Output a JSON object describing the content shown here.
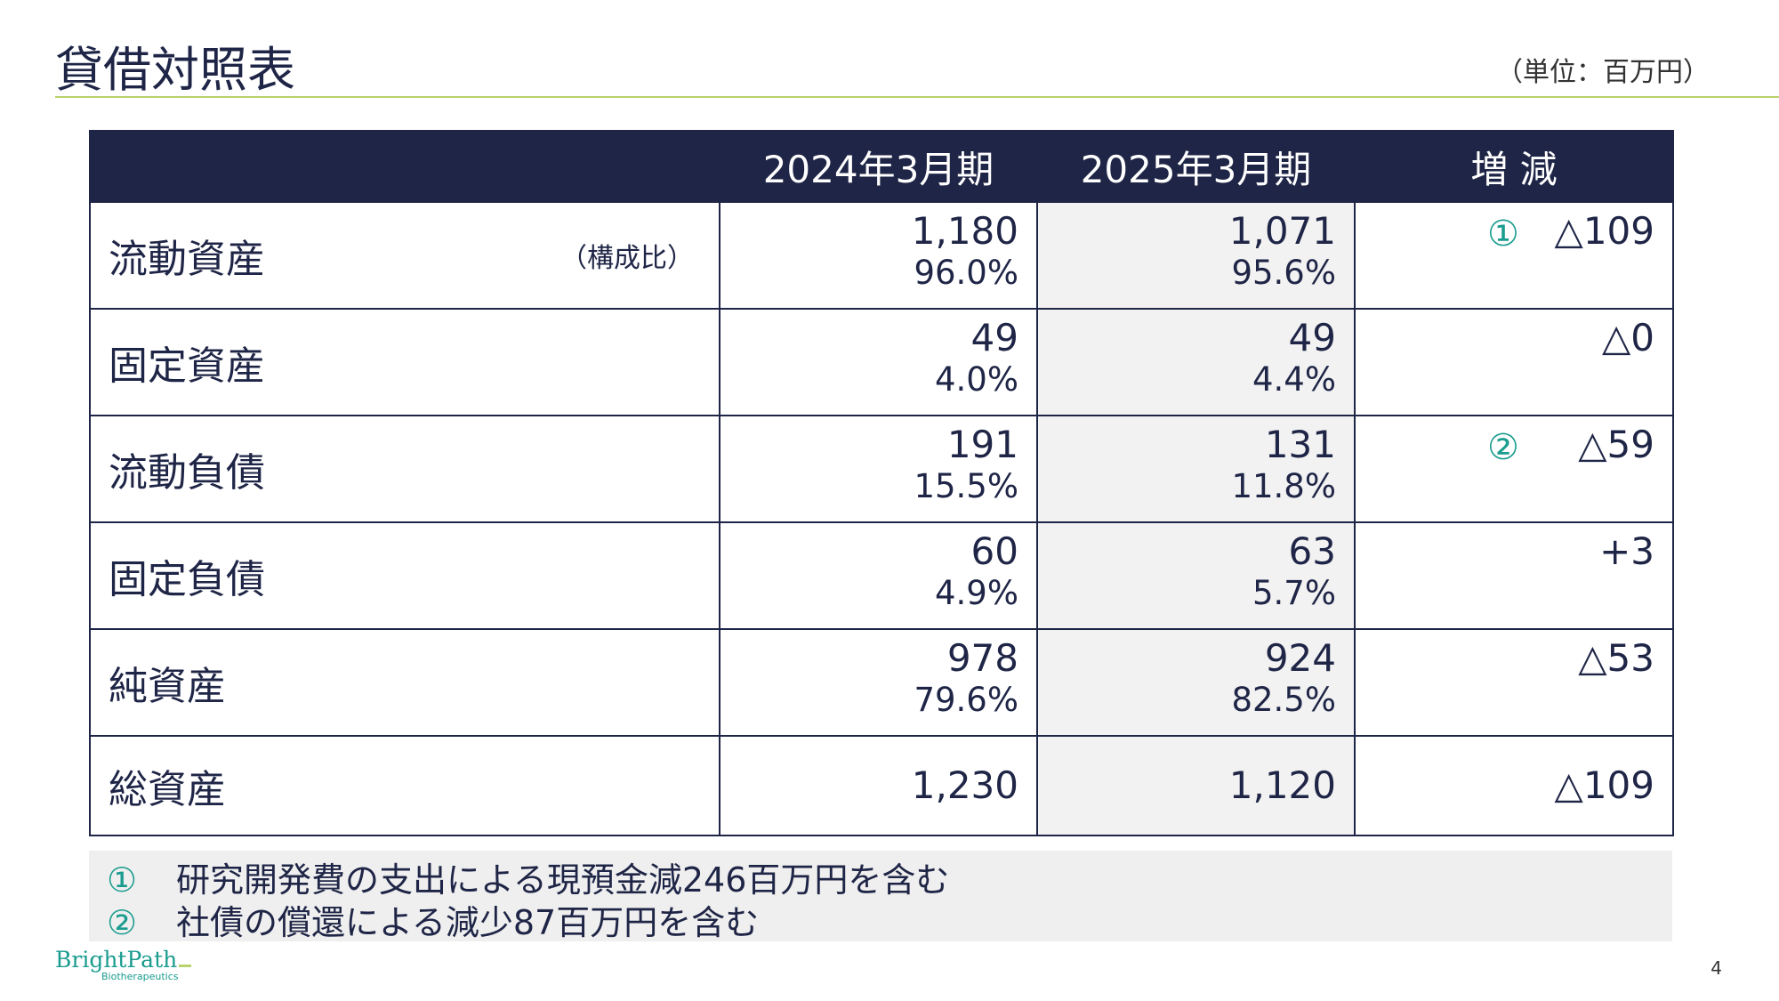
{
  "title": "貸借対照表",
  "unit": "（単位：百万円）",
  "table": {
    "headers": [
      "",
      "2024年3月期",
      "2025年3月期",
      "増 減"
    ],
    "rows": [
      {
        "label": "流動資産",
        "sublabel": "（構成比）",
        "v2024": "1,180",
        "p2024": "96.0%",
        "v2025": "1,071",
        "p2025": "95.6%",
        "marker": "①",
        "diff": "△109"
      },
      {
        "label": "固定資産",
        "sublabel": "",
        "v2024": "49",
        "p2024": "4.0%",
        "v2025": "49",
        "p2025": "4.4%",
        "marker": "",
        "diff": "△0"
      },
      {
        "label": "流動負債",
        "sublabel": "",
        "v2024": "191",
        "p2024": "15.5%",
        "v2025": "131",
        "p2025": "11.8%",
        "marker": "②",
        "diff": "△59"
      },
      {
        "label": "固定負債",
        "sublabel": "",
        "v2024": "60",
        "p2024": "4.9%",
        "v2025": "63",
        "p2025": "5.7%",
        "marker": "",
        "diff": "+3"
      },
      {
        "label": "純資産",
        "sublabel": "",
        "v2024": "978",
        "p2024": "79.6%",
        "v2025": "924",
        "p2025": "82.5%",
        "marker": "",
        "diff": "△53"
      },
      {
        "label": "総資産",
        "sublabel": "",
        "v2024": "1,230",
        "p2024": "",
        "v2025": "1,120",
        "p2025": "",
        "marker": "",
        "diff": "△109"
      }
    ]
  },
  "notes": [
    {
      "marker": "①",
      "text": "研究開発費の支出による現預金減246百万円を含む"
    },
    {
      "marker": "②",
      "text": "社債の償還による減少87百万円を含む"
    }
  ],
  "logo": {
    "main": "BrightPath",
    "sub": "Biotherapeutics"
  },
  "page_number": "4",
  "colors": {
    "navy": "#1f2546",
    "teal": "#1a9c8f",
    "lime": "#b9d36b",
    "shade": "#f2f2f2"
  }
}
